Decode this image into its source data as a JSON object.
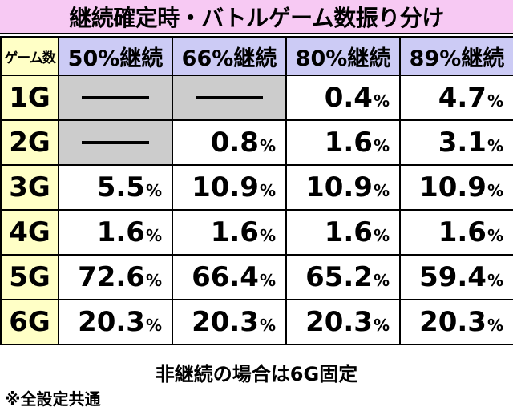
{
  "title": "継続確定時・バトルゲーム数振り分け",
  "table": {
    "corner_label": "ゲーム数",
    "columns": [
      "50%継続",
      "66%継続",
      "80%継続",
      "89%継続"
    ],
    "rows": [
      {
        "game": "1G",
        "values": [
          null,
          null,
          "0.4",
          "4.7"
        ]
      },
      {
        "game": "2G",
        "values": [
          null,
          "0.8",
          "1.6",
          "3.1"
        ]
      },
      {
        "game": "3G",
        "values": [
          "5.5",
          "10.9",
          "10.9",
          "10.9"
        ]
      },
      {
        "game": "4G",
        "values": [
          "1.6",
          "1.6",
          "1.6",
          "1.6"
        ]
      },
      {
        "game": "5G",
        "values": [
          "72.6",
          "66.4",
          "65.2",
          "59.4"
        ]
      },
      {
        "game": "6G",
        "values": [
          "20.3",
          "20.3",
          "20.3",
          "20.3"
        ]
      }
    ],
    "percent_sign": "%"
  },
  "notes": {
    "non_continue": "非継続の場合は6G固定",
    "all_settings": "※全設定共通"
  },
  "colors": {
    "title_bg": "#f7c9f3",
    "header_bg": "#cccbf5",
    "game_col_bg": "#ffffc6",
    "na_bg": "#cccccc"
  }
}
